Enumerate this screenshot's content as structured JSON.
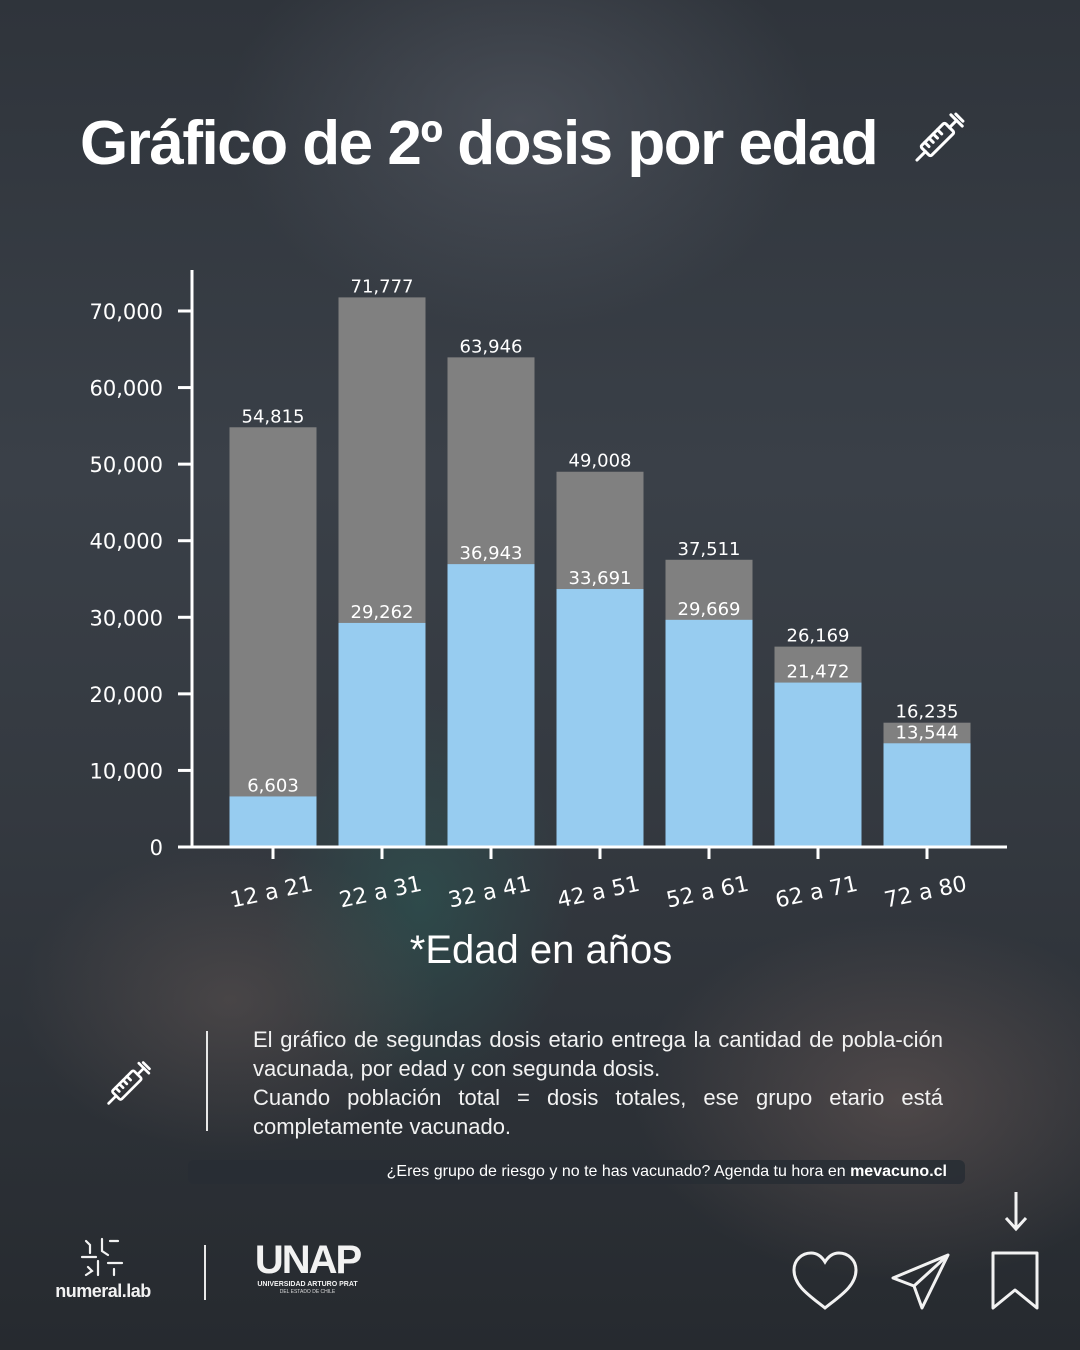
{
  "title": "Gráfico de 2º dosis por edad",
  "title_icon": "syringe-icon",
  "chart_data": {
    "type": "bar",
    "categories": [
      "12 a 21",
      "22 a 31",
      "32 a 41",
      "42 a 51",
      "52 a 61",
      "62 a 71",
      "72 a 80"
    ],
    "series": [
      {
        "name": "",
        "color": "#808080",
        "values": [
          54815,
          71777,
          63946,
          49008,
          37511,
          26169,
          16235
        ]
      },
      {
        "name": "",
        "color": "#97ccf0",
        "values": [
          6603,
          29262,
          36943,
          33691,
          29669,
          21472,
          13544
        ]
      }
    ],
    "value_labels": {
      "back": [
        "54,815",
        "71,777",
        "63,946",
        "49,008",
        "37,511",
        "26,169",
        "16,235"
      ],
      "front": [
        "6,603",
        "29,262",
        "36,943",
        "33,691",
        "29,669",
        "21,472",
        "13,544"
      ]
    },
    "yticks": [
      0,
      10000,
      20000,
      30000,
      40000,
      50000,
      60000,
      70000
    ],
    "ytick_labels": [
      "0",
      "10,000",
      "20,000",
      "30,000",
      "40,000",
      "50,000",
      "60,000",
      "70,000"
    ],
    "ylim": [
      0,
      75000
    ],
    "xlabel": "*Edad en años",
    "grid": false
  },
  "description": {
    "icon": "syringe-icon",
    "paragraph1": "El gráfico de segundas dosis etario entrega la cantidad de pobla-ción vacunada, por edad y con segunda dosis.",
    "paragraph2": "Cuando población total = dosis totales, ese grupo etario está completamente vacunado."
  },
  "cta": {
    "text": "¿Eres grupo de riesgo y no te has vacunado? Agenda tu hora en ",
    "link": "mevacuno.cl"
  },
  "logos": {
    "numeral": "numeral.lab",
    "unap": "UNAP",
    "unap_sub1": "UNIVERSIDAD ARTURO PRAT",
    "unap_sub2": "DEL ESTADO DE CHILE"
  },
  "actions": [
    "heart-icon",
    "send-icon",
    "bookmark-icon",
    "arrow-down-icon"
  ]
}
